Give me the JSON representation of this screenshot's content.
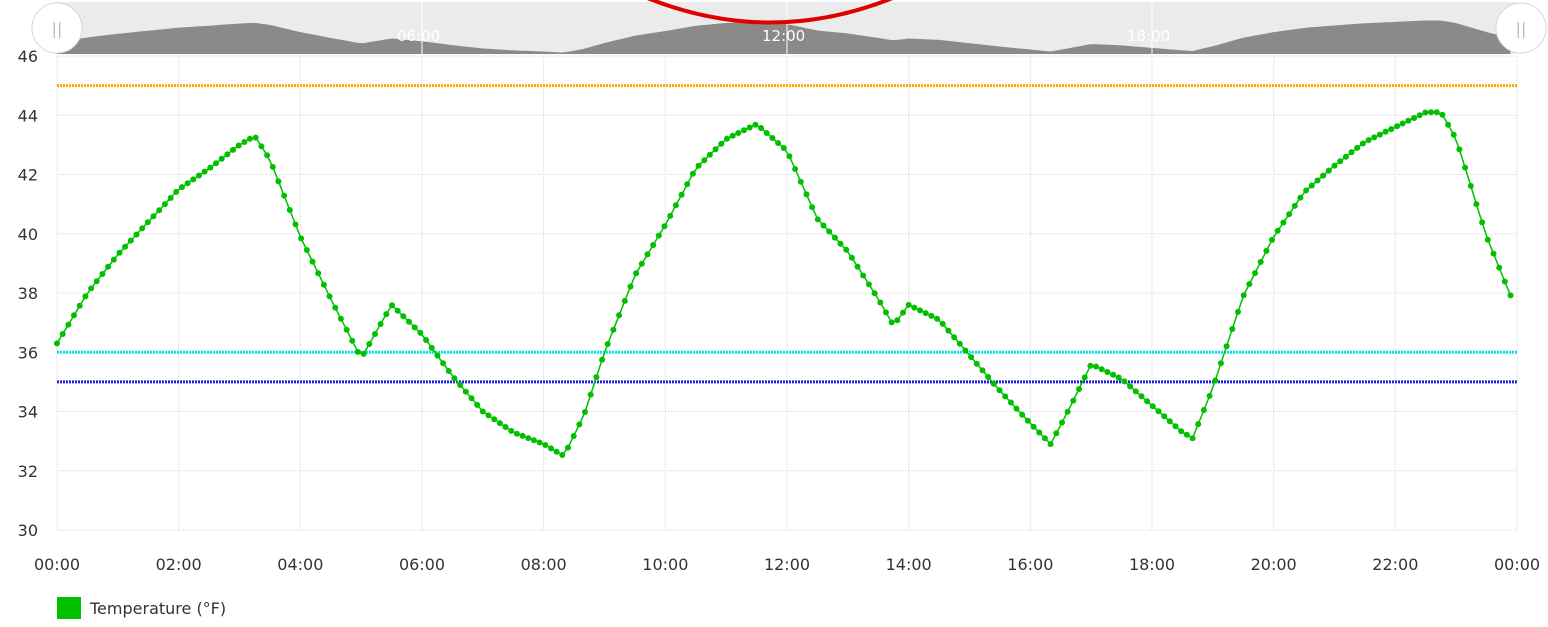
{
  "chart_data": {
    "type": "line",
    "title": "",
    "xlabel": "",
    "ylabel": "",
    "xlim": [
      "00:00",
      "24:00"
    ],
    "ylim": [
      30,
      46
    ],
    "grid": true,
    "legend_position": "bottom-left",
    "y_ticks": [
      "30",
      "32",
      "34",
      "36",
      "38",
      "40",
      "42",
      "44",
      "46"
    ],
    "x_ticks": [
      "00:00",
      "02:00",
      "04:00",
      "06:00",
      "08:00",
      "10:00",
      "12:00",
      "14:00",
      "16:00",
      "18:00",
      "20:00",
      "22:00",
      "00:00"
    ],
    "series": [
      {
        "name": "Temperature (°F)",
        "color": "#00c000",
        "points": [
          [
            "00:00",
            36.3
          ],
          [
            "00:30",
            38.0
          ],
          [
            "01:00",
            39.3
          ],
          [
            "01:30",
            40.4
          ],
          [
            "02:00",
            41.5
          ],
          [
            "02:30",
            42.2
          ],
          [
            "03:00",
            43.0
          ],
          [
            "03:15",
            43.3
          ],
          [
            "03:30",
            42.5
          ],
          [
            "04:00",
            39.9
          ],
          [
            "04:30",
            37.8
          ],
          [
            "05:00",
            35.8
          ],
          [
            "05:30",
            37.6
          ],
          [
            "06:00",
            36.6
          ],
          [
            "06:30",
            35.2
          ],
          [
            "07:00",
            34.0
          ],
          [
            "07:30",
            33.3
          ],
          [
            "08:00",
            32.9
          ],
          [
            "08:20",
            32.5
          ],
          [
            "08:40",
            33.9
          ],
          [
            "09:00",
            36.0
          ],
          [
            "09:30",
            38.6
          ],
          [
            "10:00",
            40.3
          ],
          [
            "10:30",
            42.2
          ],
          [
            "11:00",
            43.2
          ],
          [
            "11:30",
            43.7
          ],
          [
            "12:00",
            42.8
          ],
          [
            "12:30",
            40.5
          ],
          [
            "13:00",
            39.4
          ],
          [
            "13:30",
            37.8
          ],
          [
            "13:45",
            36.9
          ],
          [
            "14:00",
            37.6
          ],
          [
            "14:30",
            37.1
          ],
          [
            "15:00",
            35.9
          ],
          [
            "15:30",
            34.7
          ],
          [
            "16:00",
            33.6
          ],
          [
            "16:20",
            32.9
          ],
          [
            "16:40",
            34.2
          ],
          [
            "17:00",
            35.6
          ],
          [
            "17:30",
            35.1
          ],
          [
            "18:00",
            34.2
          ],
          [
            "18:30",
            33.3
          ],
          [
            "18:40",
            33.1
          ],
          [
            "19:00",
            34.8
          ],
          [
            "19:30",
            37.9
          ],
          [
            "20:00",
            39.9
          ],
          [
            "20:30",
            41.4
          ],
          [
            "21:00",
            42.3
          ],
          [
            "21:30",
            43.1
          ],
          [
            "22:00",
            43.6
          ],
          [
            "22:30",
            44.1
          ],
          [
            "22:45",
            44.1
          ],
          [
            "23:00",
            43.2
          ],
          [
            "23:30",
            39.9
          ],
          [
            "23:55",
            37.8
          ]
        ]
      }
    ],
    "threshold_lines": [
      {
        "value": 45,
        "color": "#ffa500"
      },
      {
        "value": 36,
        "color": "#00e5e5"
      },
      {
        "value": 35,
        "color": "#2020e0"
      }
    ]
  },
  "navigator": {
    "tick_labels": [
      "06:00",
      "12:00",
      "18:00"
    ],
    "handle_glyph": "||"
  },
  "legend": {
    "label": "Temperature (°F)",
    "color": "#00c000"
  }
}
